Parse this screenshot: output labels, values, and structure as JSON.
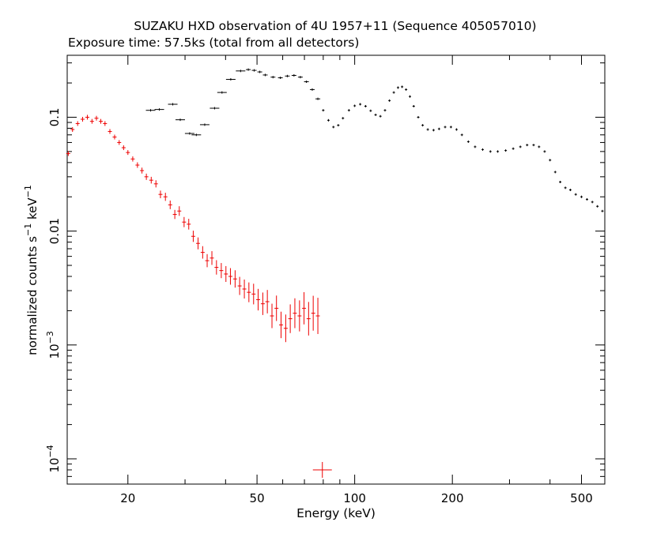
{
  "chart_data": {
    "type": "scatter",
    "title": "SUZAKU HXD observation of 4U 1957+11 (Sequence 405057010)",
    "subtitle": "Exposure time: 57.5ks (total from all detectors)",
    "xlabel": "Energy (keV)",
    "ylabel": "normalized counts s",
    "ylabel_parts": {
      "base": "normalized counts s",
      "exp1": "−1",
      "mid": " keV",
      "exp2": "−1"
    },
    "x_scale": "log",
    "y_scale": "log",
    "xlim": [
      13,
      590
    ],
    "ylim": [
      6e-05,
      0.35
    ],
    "x_ticks": [
      {
        "value": 20,
        "label": "20"
      },
      {
        "value": 50,
        "label": "50"
      },
      {
        "value": 100,
        "label": "100"
      },
      {
        "value": 200,
        "label": "200"
      },
      {
        "value": 500,
        "label": "500"
      }
    ],
    "y_ticks": [
      {
        "value": 0.1,
        "label": "0.1",
        "exp": ""
      },
      {
        "value": 0.01,
        "label": "0.01",
        "exp": ""
      },
      {
        "value": 0.001,
        "label": "10",
        "exp": "−3"
      },
      {
        "value": 0.0001,
        "label": "10",
        "exp": "−4"
      }
    ],
    "grid": false,
    "legend": "none",
    "series": [
      {
        "color": "#000000",
        "points": [
          [
            23.5,
            0.115
          ],
          [
            25,
            0.117
          ],
          [
            27.5,
            0.13
          ],
          [
            29,
            0.095
          ],
          [
            31,
            0.072
          ],
          [
            32.5,
            0.07
          ],
          [
            34.5,
            0.086
          ],
          [
            37,
            0.12
          ],
          [
            39,
            0.165
          ],
          [
            41.5,
            0.215
          ],
          [
            44.5,
            0.255
          ],
          [
            47,
            0.262
          ],
          [
            49,
            0.258
          ],
          [
            51,
            0.25
          ],
          [
            53,
            0.235
          ],
          [
            56,
            0.225
          ],
          [
            59,
            0.222
          ],
          [
            62,
            0.23
          ],
          [
            65,
            0.233
          ],
          [
            68,
            0.225
          ],
          [
            71,
            0.205
          ],
          [
            74,
            0.175
          ],
          [
            77,
            0.145
          ],
          [
            80,
            0.115
          ],
          [
            83,
            0.094
          ],
          [
            86,
            0.082
          ],
          [
            89,
            0.085
          ],
          [
            92,
            0.098
          ],
          [
            96,
            0.115
          ],
          [
            100,
            0.126
          ],
          [
            104,
            0.13
          ],
          [
            108,
            0.125
          ],
          [
            112,
            0.114
          ],
          [
            116,
            0.105
          ],
          [
            120,
            0.102
          ],
          [
            124,
            0.115
          ],
          [
            128,
            0.14
          ],
          [
            132,
            0.165
          ],
          [
            136,
            0.182
          ],
          [
            140,
            0.185
          ],
          [
            144,
            0.175
          ],
          [
            148,
            0.152
          ],
          [
            152,
            0.125
          ],
          [
            157,
            0.1
          ],
          [
            162,
            0.085
          ],
          [
            168,
            0.078
          ],
          [
            175,
            0.077
          ],
          [
            182,
            0.079
          ],
          [
            190,
            0.082
          ],
          [
            198,
            0.082
          ],
          [
            206,
            0.078
          ],
          [
            214,
            0.07
          ],
          [
            224,
            0.061
          ],
          [
            235,
            0.055
          ],
          [
            248,
            0.052
          ],
          [
            262,
            0.05
          ],
          [
            276,
            0.05
          ],
          [
            292,
            0.051
          ],
          [
            308,
            0.053
          ],
          [
            324,
            0.055
          ],
          [
            340,
            0.057
          ],
          [
            356,
            0.057
          ],
          [
            370,
            0.055
          ],
          [
            385,
            0.05
          ],
          [
            400,
            0.042
          ],
          [
            415,
            0.033
          ],
          [
            430,
            0.027
          ],
          [
            446,
            0.024
          ],
          [
            462,
            0.023
          ],
          [
            480,
            0.021
          ],
          [
            500,
            0.02
          ],
          [
            520,
            0.019
          ],
          [
            540,
            0.018
          ],
          [
            560,
            0.0165
          ],
          [
            580,
            0.015
          ]
        ]
      },
      {
        "color": "#ee0000",
        "points": [
          [
            13.1,
            0.048
          ],
          [
            13.5,
            0.078
          ],
          [
            14,
            0.088
          ],
          [
            14.5,
            0.096
          ],
          [
            15,
            0.1
          ],
          [
            15.5,
            0.092
          ],
          [
            16,
            0.098
          ],
          [
            16.5,
            0.092
          ],
          [
            17,
            0.088
          ],
          [
            17.6,
            0.075
          ],
          [
            18.2,
            0.067
          ],
          [
            18.8,
            0.06
          ],
          [
            19.4,
            0.054
          ],
          [
            20,
            0.049
          ],
          [
            20.7,
            0.043
          ],
          [
            21.4,
            0.038
          ],
          [
            22.1,
            0.034
          ],
          [
            22.8,
            0.03
          ],
          [
            23.6,
            0.028
          ],
          [
            24.4,
            0.026
          ],
          [
            25.2,
            0.021
          ],
          [
            26.1,
            0.02
          ],
          [
            27,
            0.017
          ],
          [
            27.9,
            0.014
          ],
          [
            28.8,
            0.015
          ],
          [
            29.8,
            0.012
          ],
          [
            30.8,
            0.0115
          ],
          [
            31.8,
            0.009
          ],
          [
            32.9,
            0.0078
          ],
          [
            34,
            0.0065
          ],
          [
            35.1,
            0.0055
          ],
          [
            36.3,
            0.0058
          ],
          [
            37.5,
            0.0048
          ],
          [
            38.8,
            0.0045
          ],
          [
            40.1,
            0.0042
          ],
          [
            41.4,
            0.004
          ],
          [
            42.8,
            0.0038
          ],
          [
            44.2,
            0.0033
          ],
          [
            45.7,
            0.0031
          ],
          [
            47.2,
            0.0029
          ],
          [
            48.8,
            0.0028
          ],
          [
            50.4,
            0.0025
          ],
          [
            52.1,
            0.0023
          ],
          [
            53.8,
            0.0024
          ],
          [
            55.6,
            0.0018
          ],
          [
            57.4,
            0.0021
          ],
          [
            59.3,
            0.0015
          ],
          [
            61.3,
            0.0014
          ],
          [
            63.3,
            0.0017
          ],
          [
            65.4,
            0.0019
          ],
          [
            67.6,
            0.0018
          ],
          [
            69.8,
            0.0021
          ],
          [
            72.1,
            0.0017
          ],
          [
            74.5,
            0.0019
          ],
          [
            77,
            0.0018
          ],
          [
            79.5,
            8e-05
          ]
        ]
      }
    ]
  }
}
